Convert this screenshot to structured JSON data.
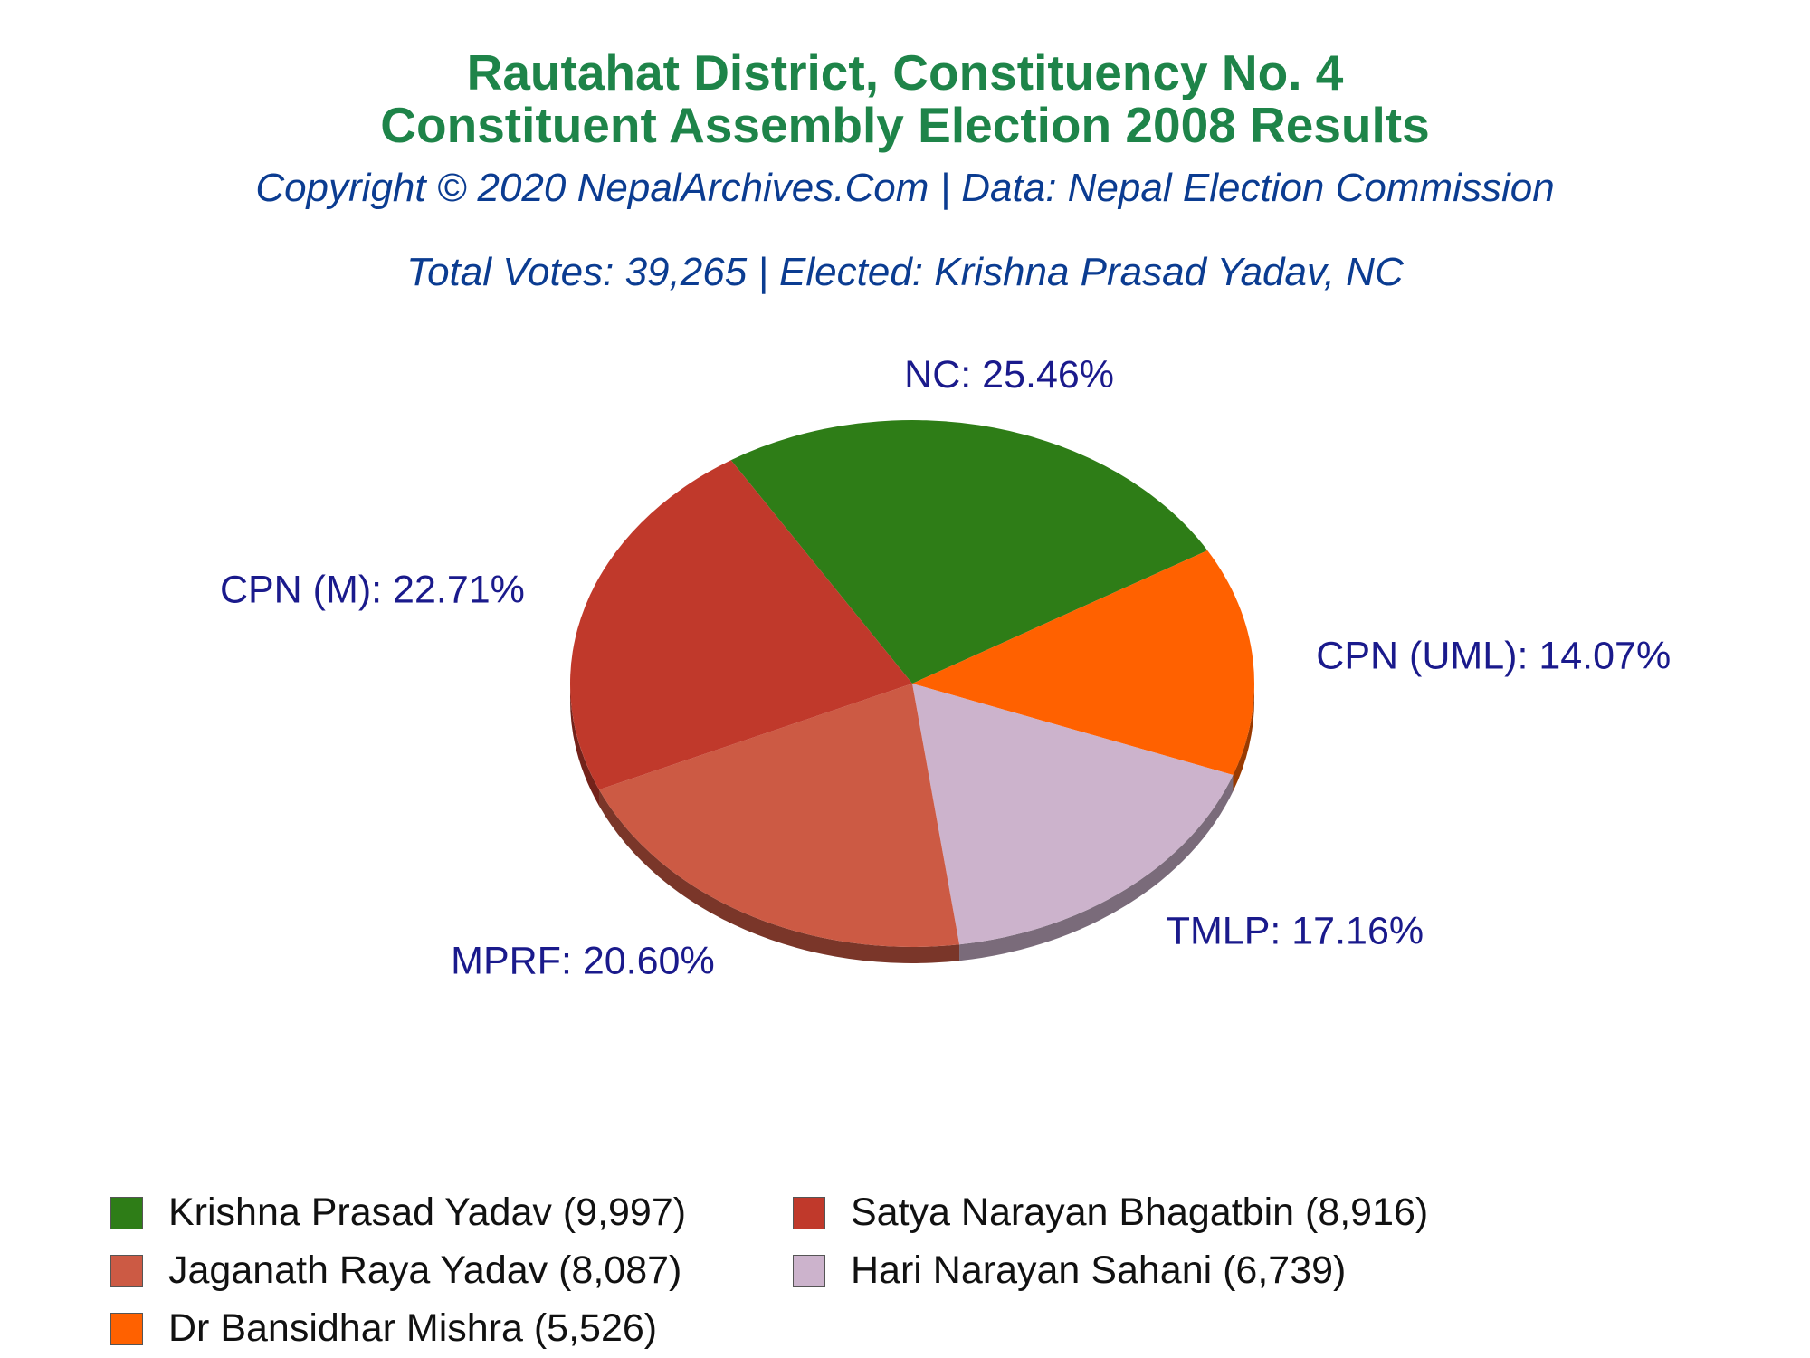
{
  "titles": {
    "line1": "Rautahat District, Constituency No. 4",
    "line2": "Constituent Assembly Election 2008 Results",
    "copyright": "Copyright © 2020 NepalArchives.Com | Data: Nepal Election Commission",
    "info": "Total Votes: 39,265 | Elected: Krishna Prasad Yadav, NC"
  },
  "chart_data": {
    "type": "pie",
    "title": "Rautahat District, Constituency No. 4 Constituent Assembly Election 2008 Results",
    "total_votes": 39265,
    "slices": [
      {
        "party": "NC",
        "label": "NC: 25.46%",
        "percent": 25.46,
        "votes": 9997,
        "color": "#2e7d17"
      },
      {
        "party": "CPN (UML)",
        "label": "CPN (UML): 14.07%",
        "percent": 14.07,
        "votes": 5526,
        "color": "#ff6100"
      },
      {
        "party": "TMLP",
        "label": "TMLP: 17.16%",
        "percent": 17.16,
        "votes": 6739,
        "color": "#ccb3cc"
      },
      {
        "party": "MPRF",
        "label": "MPRF: 20.60%",
        "percent": 20.6,
        "votes": 8087,
        "color": "#cc5a44"
      },
      {
        "party": "CPN (M)",
        "label": "CPN (M): 22.71%",
        "percent": 22.71,
        "votes": 8916,
        "color": "#c0392b"
      }
    ],
    "legend": [
      {
        "text": "Krishna Prasad Yadav (9,997)",
        "color": "#2e7d17"
      },
      {
        "text": "Satya Narayan Bhagatbin (8,916)",
        "color": "#c0392b"
      },
      {
        "text": "Jaganath Raya Yadav (8,087)",
        "color": "#cc5a44"
      },
      {
        "text": "Hari Narayan Sahani (6,739)",
        "color": "#ccb3cc"
      },
      {
        "text": "Dr Bansidhar Mishra (5,526)",
        "color": "#ff6100"
      }
    ],
    "legend_position": "bottom"
  }
}
